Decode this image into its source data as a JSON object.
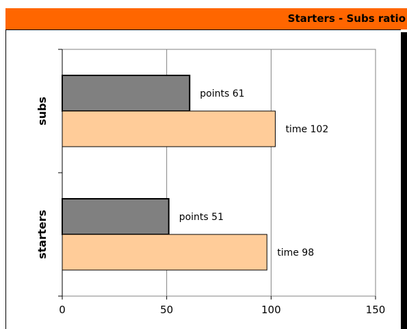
{
  "header": {
    "title": "Starters - Subs ratio",
    "bar_color": "#ff6600"
  },
  "chart_data": {
    "type": "bar",
    "orientation": "horizontal",
    "title": "Starters - Subs ratio",
    "xlabel": "",
    "ylabel": "",
    "categories": [
      "starters",
      "subs"
    ],
    "series": [
      {
        "key": "points",
        "color": "#808080",
        "values": [
          51,
          61
        ],
        "labels": [
          "points 51",
          "points 61"
        ]
      },
      {
        "key": "time",
        "color": "#ffcc99",
        "values": [
          98,
          102
        ],
        "labels": [
          "time 98",
          "time 102"
        ]
      }
    ],
    "xlim": [
      0,
      150
    ],
    "x_ticks": [
      "0",
      "50",
      "100",
      "150"
    ],
    "grid": "vertical",
    "legend": "none"
  }
}
